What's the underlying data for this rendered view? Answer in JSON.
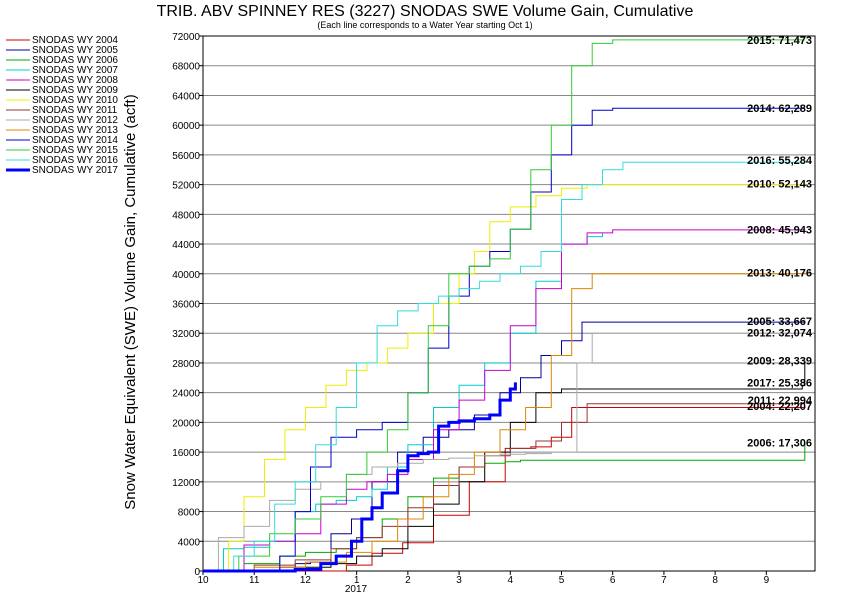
{
  "chart_data": {
    "type": "line",
    "title": "TRIB. ABV SPINNEY RES (3227) SNODAS SWE Volume Gain, Cumulative",
    "subtitle": "(Each line corresponds to a Water Year starting Oct 1)",
    "ylabel": "Snow Water Equivalent (SWE) Volume Gain, Cumulative (acft)",
    "xlabel_year": "2017",
    "ylim": [
      0,
      72000
    ],
    "yticks": [
      "0",
      "4000",
      "8000",
      "12000",
      "16000",
      "20000",
      "24000",
      "28000",
      "32000",
      "36000",
      "40000",
      "44000",
      "48000",
      "52000",
      "56000",
      "60000",
      "64000",
      "68000",
      "72000"
    ],
    "xlim": [
      10,
      21.95
    ],
    "xticks": [
      {
        "x": 10,
        "label": "10"
      },
      {
        "x": 11,
        "label": "11"
      },
      {
        "x": 12,
        "label": "12"
      },
      {
        "x": 13,
        "label": "1"
      },
      {
        "x": 14,
        "label": "2"
      },
      {
        "x": 15,
        "label": "3"
      },
      {
        "x": 16,
        "label": "4"
      },
      {
        "x": 17,
        "label": "5"
      },
      {
        "x": 18,
        "label": "6"
      },
      {
        "x": 19,
        "label": "7"
      },
      {
        "x": 20,
        "label": "8"
      },
      {
        "x": 21,
        "label": "9"
      }
    ],
    "grid": "horizontal",
    "legend_position": "left",
    "series": [
      {
        "name": "SNODAS WY 2004",
        "color": "#cc0000",
        "end_label": "2004: 22,207",
        "x": [
          10,
          11.5,
          12.8,
          13.3,
          13.9,
          14.5,
          15.2,
          15.9,
          16.4,
          16.8,
          17.2,
          21.75
        ],
        "y": [
          0,
          0,
          800,
          2400,
          3800,
          7500,
          12000,
          16500,
          16700,
          18000,
          22000,
          22207
        ]
      },
      {
        "name": "SNODAS WY 2005",
        "color": "#000099",
        "end_label": "2005: 33,667",
        "x": [
          10,
          11.8,
          12.1,
          12.5,
          12.9,
          13.3,
          13.8,
          14.3,
          14.8,
          15.3,
          15.8,
          16.2,
          16.6,
          17.0,
          17.4,
          21.75
        ],
        "y": [
          0,
          1000,
          1200,
          5000,
          7000,
          12000,
          16000,
          18000,
          19000,
          21000,
          24000,
          26000,
          29000,
          31000,
          33500,
          33667
        ]
      },
      {
        "name": "SNODAS WY 2006",
        "color": "#00aa00",
        "end_label": "2006: 17,306",
        "x": [
          10,
          10.8,
          11.5,
          12.0,
          12.6,
          13.0,
          13.5,
          14.0,
          14.5,
          15.0,
          15.5,
          15.9,
          16.2,
          21.7,
          21.75
        ],
        "y": [
          0,
          1000,
          2000,
          2500,
          3000,
          4500,
          7000,
          10000,
          12500,
          14000,
          14500,
          14700,
          14900,
          14900,
          17306
        ]
      },
      {
        "name": "SNODAS WY 2007",
        "color": "#00cccc",
        "end_label": "",
        "x": [
          10,
          10.4,
          10.8,
          11.3,
          11.8,
          12.2,
          12.6,
          13.0,
          13.3,
          13.6,
          14.0,
          14.5,
          15.0,
          15.5,
          16.0,
          16.5,
          17.0,
          17.5,
          17.8
        ],
        "y": [
          0,
          3000,
          3200,
          4000,
          8000,
          9000,
          9500,
          10000,
          11000,
          14000,
          17000,
          22000,
          25000,
          28000,
          32000,
          39000,
          44000,
          45000,
          45500
        ]
      },
      {
        "name": "SNODAS WY 2008",
        "color": "#cc00cc",
        "end_label": "2008: 45,943",
        "x": [
          10,
          10.8,
          11.3,
          11.8,
          12.3,
          12.8,
          13.2,
          13.6,
          14.0,
          14.5,
          15.0,
          15.5,
          16.0,
          16.5,
          17.0,
          17.5,
          18.0,
          21.75
        ],
        "y": [
          0,
          3500,
          4000,
          5000,
          9000,
          11000,
          12000,
          13000,
          15000,
          19000,
          23000,
          27000,
          33000,
          38000,
          44000,
          45500,
          45900,
          45943
        ]
      },
      {
        "name": "SNODAS WY 2009",
        "color": "#000000",
        "end_label": "2009: 28,339",
        "x": [
          10,
          11.5,
          12.5,
          13.0,
          13.5,
          14.0,
          14.5,
          15.0,
          15.5,
          16.0,
          16.5,
          17.0,
          21.7,
          21.75
        ],
        "y": [
          0,
          500,
          1000,
          2000,
          3000,
          6000,
          9000,
          12000,
          16000,
          20000,
          24000,
          24500,
          25000,
          28339
        ]
      },
      {
        "name": "SNODAS WY 2010",
        "color": "#eeee00",
        "end_label": "2010: 52,143",
        "x": [
          10,
          10.5,
          10.8,
          11.2,
          11.6,
          12.0,
          12.4,
          12.8,
          13.2,
          13.6,
          14.0,
          14.5,
          15.0,
          15.3,
          15.6,
          16.0,
          16.5,
          17.0,
          17.5,
          21.75
        ],
        "y": [
          0,
          4000,
          10000,
          15000,
          19000,
          22000,
          25000,
          27000,
          28000,
          30000,
          32000,
          36000,
          40000,
          43000,
          47000,
          49000,
          50500,
          51500,
          52000,
          52143
        ]
      },
      {
        "name": "SNODAS WY 2011",
        "color": "#993333",
        "end_label": "2011: 22,994",
        "x": [
          10,
          11.0,
          11.8,
          12.5,
          13.0,
          13.5,
          14.0,
          14.5,
          15.0,
          15.5,
          16.0,
          16.5,
          17.0,
          17.5,
          21.75
        ],
        "y": [
          0,
          800,
          1500,
          3000,
          4500,
          6000,
          8500,
          11500,
          14000,
          15500,
          16500,
          17500,
          20000,
          22500,
          22994
        ]
      },
      {
        "name": "SNODAS WY 2012",
        "color": "#aaaaaa",
        "end_label": "2012: 32,074",
        "x": [
          10,
          10.3,
          10.8,
          11.3,
          11.8,
          12.3,
          12.8,
          13.3,
          13.8,
          14.3,
          14.8,
          15.3,
          15.8,
          16.3,
          16.8,
          17.3,
          17.6,
          21.75
        ],
        "y": [
          0,
          4500,
          6000,
          9500,
          11000,
          12000,
          13000,
          14000,
          14500,
          15000,
          15200,
          15500,
          15700,
          15800,
          16000,
          28000,
          32000,
          32074
        ]
      },
      {
        "name": "SNODAS WY 2013",
        "color": "#dd8800",
        "end_label": "2013: 40,176",
        "x": [
          10,
          11.0,
          12.0,
          12.8,
          13.3,
          13.8,
          14.3,
          14.8,
          15.3,
          15.8,
          16.3,
          16.8,
          17.2,
          17.6,
          21.75
        ],
        "y": [
          0,
          500,
          1200,
          2500,
          4000,
          7000,
          10000,
          13000,
          16000,
          19000,
          22000,
          29000,
          38000,
          40000,
          40176
        ]
      },
      {
        "name": "SNODAS WY 2014",
        "color": "#0000cc",
        "end_label": "2014: 62,289",
        "x": [
          10,
          11.5,
          11.8,
          12.1,
          12.5,
          13.0,
          13.5,
          14.0,
          14.4,
          14.8,
          15.2,
          15.6,
          16.0,
          16.4,
          16.8,
          17.2,
          17.6,
          18.0,
          21.75
        ],
        "y": [
          0,
          2000,
          8000,
          14000,
          18000,
          19000,
          20000,
          24000,
          30000,
          37000,
          41000,
          43000,
          46000,
          51000,
          56000,
          60000,
          62000,
          62289,
          62289
        ]
      },
      {
        "name": "SNODAS WY 2015",
        "color": "#33cc33",
        "end_label": "2015: 71,473",
        "x": [
          10,
          10.7,
          11.3,
          11.8,
          12.3,
          12.8,
          13.2,
          13.6,
          14.0,
          14.4,
          14.8,
          15.2,
          15.6,
          16.0,
          16.4,
          16.8,
          17.2,
          17.6,
          18.0,
          21.75
        ],
        "y": [
          0,
          2000,
          5000,
          7000,
          10000,
          13000,
          16000,
          19000,
          24000,
          33000,
          40000,
          41000,
          42000,
          46000,
          54000,
          60000,
          68000,
          71000,
          71473,
          71473
        ]
      },
      {
        "name": "SNODAS WY 2016",
        "color": "#33dddd",
        "end_label": "2016: 55,284",
        "x": [
          10,
          10.6,
          11.0,
          11.4,
          11.8,
          12.2,
          12.6,
          13.0,
          13.4,
          13.8,
          14.2,
          14.6,
          15.0,
          15.4,
          15.8,
          16.2,
          16.6,
          17.0,
          17.4,
          17.8,
          18.2,
          21.75
        ],
        "y": [
          0,
          2000,
          4000,
          9000,
          12000,
          17000,
          22000,
          28000,
          33000,
          35000,
          36000,
          37000,
          38000,
          39000,
          40000,
          41000,
          43000,
          50000,
          52000,
          54000,
          55000,
          55284
        ]
      },
      {
        "name": "SNODAS WY 2017",
        "color": "#0000ff",
        "end_label": "2017: 25,386",
        "bold": true,
        "x": [
          10,
          11.0,
          11.8,
          12.3,
          12.6,
          12.9,
          13.1,
          13.3,
          13.5,
          13.8,
          14.0,
          14.2,
          14.4,
          14.6,
          14.8,
          15.0,
          15.3,
          15.6,
          15.8,
          16.0,
          16.1
        ],
        "y": [
          0,
          0,
          200,
          1000,
          2000,
          4000,
          7000,
          8500,
          10500,
          13500,
          15500,
          15800,
          16000,
          19500,
          20000,
          20200,
          20500,
          21000,
          23000,
          24500,
          25386
        ]
      }
    ]
  }
}
